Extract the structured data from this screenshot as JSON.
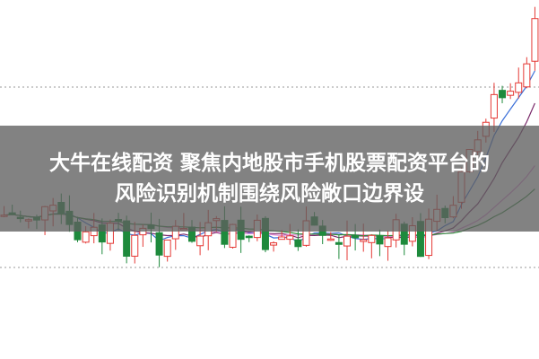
{
  "banner": {
    "title_lines": [
      "大牛在线配资 聚焦内地股市手机股票配资平台的",
      "风险识别机制围绕风险敞口边界设"
    ]
  }
}
